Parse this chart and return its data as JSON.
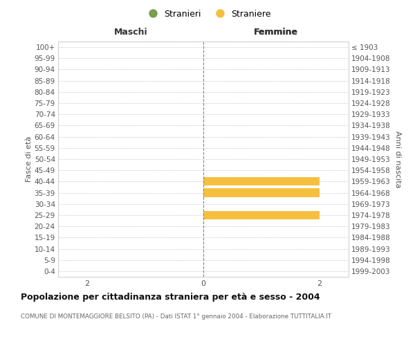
{
  "age_groups": [
    "100+",
    "95-99",
    "90-94",
    "85-89",
    "80-84",
    "75-79",
    "70-74",
    "65-69",
    "60-64",
    "55-59",
    "50-54",
    "45-49",
    "40-44",
    "35-39",
    "30-34",
    "25-29",
    "20-24",
    "15-19",
    "10-14",
    "5-9",
    "0-4"
  ],
  "birth_years": [
    "≤ 1903",
    "1904-1908",
    "1909-1913",
    "1914-1918",
    "1919-1923",
    "1924-1928",
    "1929-1933",
    "1934-1938",
    "1939-1943",
    "1944-1948",
    "1949-1953",
    "1954-1958",
    "1959-1963",
    "1964-1968",
    "1969-1973",
    "1974-1978",
    "1979-1983",
    "1984-1988",
    "1989-1993",
    "1994-1998",
    "1999-2003"
  ],
  "maschi_stranieri": [
    0,
    0,
    0,
    0,
    0,
    0,
    0,
    0,
    0,
    0,
    0,
    0,
    0,
    0,
    0,
    0,
    0,
    0,
    0,
    0,
    0
  ],
  "femmine_straniere": [
    0,
    0,
    0,
    0,
    0,
    0,
    0,
    0,
    0,
    0,
    0,
    0,
    2,
    2,
    0,
    2,
    0,
    0,
    0,
    0,
    0
  ],
  "color_stranieri": "#7a9e4e",
  "color_straniere": "#f5c040",
  "xlim": 2.5,
  "title": "Popolazione per cittadinanza straniera per età e sesso - 2004",
  "subtitle": "COMUNE DI MONTEMAGGIORE BELSITO (PA) - Dati ISTAT 1° gennaio 2004 - Elaborazione TUTTITALIA.IT",
  "ylabel_left": "Fasce di età",
  "ylabel_right": "Anni di nascita",
  "xlabel_left": "Maschi",
  "xlabel_right": "Femmine",
  "legend_stranieri": "Stranieri",
  "legend_straniere": "Straniere",
  "background_color": "#ffffff",
  "grid_color": "#cccccc",
  "center_line_color": "#aaaaaa"
}
